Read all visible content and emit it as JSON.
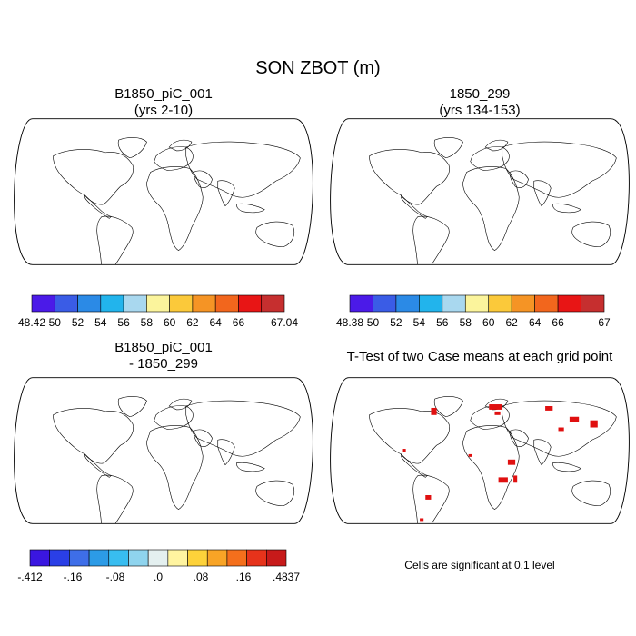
{
  "figure_title": "SON ZBOT (m)",
  "chart_data": [
    {
      "type": "heatmap",
      "projection": "robinson",
      "title_line1": "B1850_piC_001",
      "title_line2": "(yrs 2-10)",
      "variable": "ZBOT",
      "units": "m",
      "colorbar": {
        "colors": [
          "#4b1ae8",
          "#3a5ce6",
          "#2b8ae6",
          "#22b4ec",
          "#a9d8ef",
          "#fbf49c",
          "#fbc93a",
          "#f59425",
          "#f2661d",
          "#e81515",
          "#c62f2f"
        ],
        "labels": [
          "48.42",
          "50",
          "52",
          "54",
          "56",
          "58",
          "60",
          "62",
          "64",
          "66",
          "67.04"
        ],
        "range": [
          48.42,
          67.04
        ]
      }
    },
    {
      "type": "heatmap",
      "projection": "robinson",
      "title_line1": "1850_299",
      "title_line2": "(yrs 134-153)",
      "variable": "ZBOT",
      "units": "m",
      "colorbar": {
        "colors": [
          "#4b1ae8",
          "#3a5ce6",
          "#2b8ae6",
          "#22b4ec",
          "#a9d8ef",
          "#fbf49c",
          "#fbc93a",
          "#f59425",
          "#f2661d",
          "#e81515",
          "#c62f2f"
        ],
        "labels": [
          "48.38",
          "50",
          "52",
          "54",
          "56",
          "58",
          "60",
          "62",
          "64",
          "66",
          "67"
        ],
        "range": [
          48.38,
          67
        ]
      }
    },
    {
      "type": "heatmap",
      "projection": "robinson",
      "title_line1": "B1850_piC_001",
      "title_line2": "- 1850_299",
      "variable": "ZBOT difference",
      "units": "m",
      "colorbar": {
        "colors": [
          "#3a16e0",
          "#2a3fe6",
          "#3e6ee8",
          "#2c9be6",
          "#38bdf0",
          "#8fd4ee",
          "#e4f0f0",
          "#fff4a0",
          "#fdd23a",
          "#f8a426",
          "#f46f1c",
          "#e6331b",
          "#c71a1a"
        ],
        "labels": [
          "-.412",
          "-.16",
          "-.08",
          ".0",
          ".08",
          ".16",
          ".4837"
        ],
        "range": [
          -0.412,
          0.4837
        ]
      }
    },
    {
      "type": "heatmap",
      "projection": "robinson",
      "title_line1": "T-Test of two Case means at each grid point",
      "title_line2": "",
      "significance_color": "#e01010",
      "note": "Cells are significant at 0.1 level"
    }
  ]
}
